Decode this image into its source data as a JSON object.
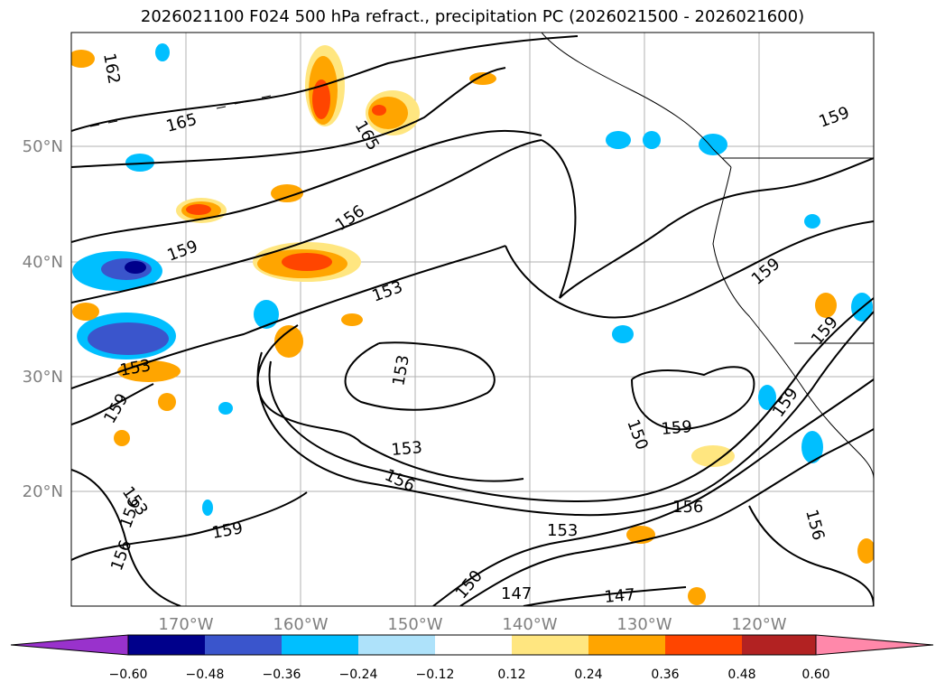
{
  "title": "2026021100 F024 500 hPa refract., precipitation PC (2026021500 - 2026021600)",
  "map": {
    "lon_labels": [
      "170°W",
      "160°W",
      "150°W",
      "140°W",
      "130°W",
      "120°W"
    ],
    "lat_labels": [
      "50°N",
      "40°N",
      "30°N",
      "20°N"
    ],
    "contour_labels": [
      "162",
      "165",
      "165",
      "159",
      "156",
      "159",
      "153",
      "153",
      "153",
      "159",
      "159",
      "156",
      "153",
      "156",
      "159",
      "153",
      "150",
      "147",
      "147",
      "153",
      "156",
      "159",
      "150",
      "159",
      "159",
      "156",
      "156",
      "159"
    ]
  },
  "colorbar": {
    "ticks": [
      "−0.60",
      "−0.48",
      "−0.36",
      "−0.24",
      "−0.12",
      "0.12",
      "0.24",
      "0.36",
      "0.48",
      "0.60"
    ],
    "colors": [
      "#9932cc",
      "#00008b",
      "#3a55cc",
      "#00bfff",
      "#aee2fa",
      "#ffffff",
      "#ffe680",
      "#ffa500",
      "#ff4500",
      "#b22222",
      "#ff88aa"
    ]
  },
  "colors": {
    "grid": "#b0b0b0",
    "axis_label": "#808080",
    "contour": "#000000"
  }
}
